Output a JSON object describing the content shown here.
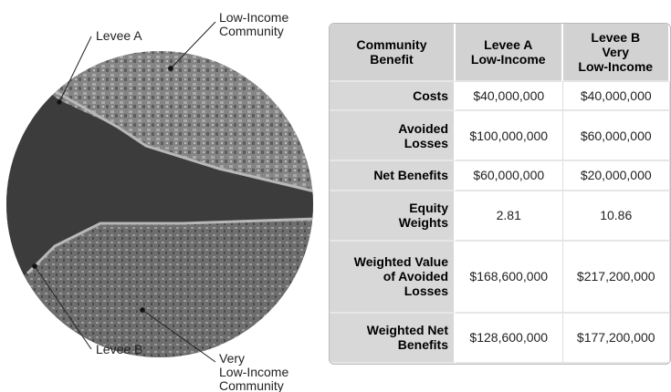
{
  "labels": {
    "levee_a": "Levee A",
    "levee_b": "Levee B",
    "low_income": [
      "Low-Income",
      "Community"
    ],
    "very_low_income": [
      "Very",
      "Low-Income",
      "Community"
    ]
  },
  "table": {
    "header": [
      [
        "Community",
        "Benefit"
      ],
      [
        "Levee A",
        "Low-Income"
      ],
      [
        "Levee B",
        "Very",
        "Low-Income"
      ]
    ],
    "rows": [
      [
        [
          "Costs"
        ],
        "$40,000,000",
        "$40,000,000"
      ],
      [
        [
          "Avoided",
          "Losses"
        ],
        "$100,000,000",
        "$60,000,000"
      ],
      [
        [
          "Net Benefits"
        ],
        "$60,000,000",
        "$20,000,000"
      ],
      [
        [
          "Equity",
          "Weights"
        ],
        "2.81",
        "10.86"
      ],
      [
        [
          "Weighted Value",
          "of Avoided",
          "Losses"
        ],
        "$168,600,000",
        "$217,200,000"
      ],
      [
        [
          "Weighted Net",
          "Benefits"
        ],
        "$128,600,000",
        "$177,200,000"
      ]
    ]
  }
}
